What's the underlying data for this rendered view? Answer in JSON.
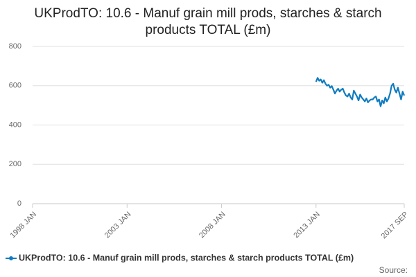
{
  "chart_data": {
    "type": "line",
    "title": "UKProdTO: 10.6 - Manuf grain mill prods, starches & starch products TOTAL (£m)",
    "x": [
      "2013-01",
      "2013-02",
      "2013-03",
      "2013-04",
      "2013-05",
      "2013-06",
      "2013-07",
      "2013-08",
      "2013-09",
      "2013-10",
      "2013-11",
      "2013-12",
      "2014-01",
      "2014-02",
      "2014-03",
      "2014-04",
      "2014-05",
      "2014-06",
      "2014-07",
      "2014-08",
      "2014-09",
      "2014-10",
      "2014-11",
      "2014-12",
      "2015-01",
      "2015-02",
      "2015-03",
      "2015-04",
      "2015-05",
      "2015-06",
      "2015-07",
      "2015-08",
      "2015-09",
      "2015-10",
      "2015-11",
      "2015-12",
      "2016-01",
      "2016-02",
      "2016-03",
      "2016-04",
      "2016-05",
      "2016-06",
      "2016-07",
      "2016-08",
      "2016-09",
      "2016-10",
      "2016-11",
      "2016-12",
      "2017-01",
      "2017-02",
      "2017-03",
      "2017-04",
      "2017-05",
      "2017-06",
      "2017-07",
      "2017-08",
      "2017-09"
    ],
    "series": [
      {
        "name": "UKProdTO: 10.6 - Manuf grain mill prods, starches & starch products TOTAL (£m)",
        "color": "#0f7cbf",
        "values": [
          620,
          640,
          625,
          632,
          615,
          628,
          610,
          600,
          605,
          590,
          598,
          580,
          560,
          575,
          585,
          570,
          580,
          585,
          565,
          550,
          545,
          560,
          540,
          530,
          575,
          560,
          545,
          525,
          555,
          540,
          530,
          520,
          535,
          515,
          525,
          530,
          530,
          540,
          545,
          520,
          530,
          495,
          525,
          510,
          540,
          520,
          535,
          560,
          600,
          610,
          580,
          565,
          590,
          560,
          530,
          570,
          550
        ]
      }
    ],
    "xlim": [
      "1998-01",
      "2017-09"
    ],
    "xticks": [
      {
        "value": "1998-01",
        "label": "1998 JAN"
      },
      {
        "value": "2003-01",
        "label": "2003 JAN"
      },
      {
        "value": "2008-01",
        "label": "2008 JAN"
      },
      {
        "value": "2013-01",
        "label": "2013 JAN"
      },
      {
        "value": "2017-09",
        "label": "2017 SEP"
      }
    ],
    "ylim": [
      0,
      800
    ],
    "yticks": [
      0,
      200,
      400,
      600,
      800
    ],
    "grid": true,
    "source": "Source:"
  }
}
